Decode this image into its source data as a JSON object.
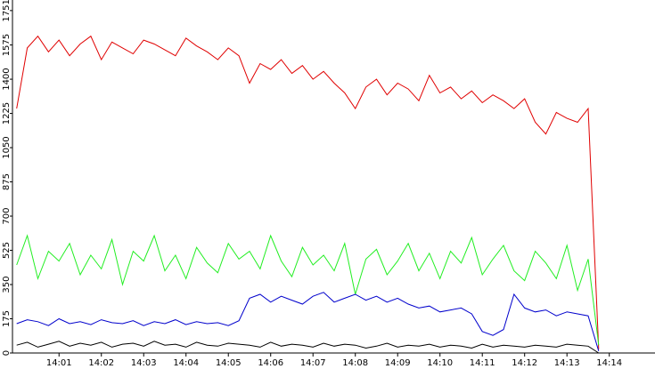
{
  "chart_data": {
    "type": "line",
    "x": [
      840,
      840.25,
      840.5,
      840.75,
      841,
      841.25,
      841.5,
      841.75,
      842,
      842.25,
      842.5,
      842.75,
      843,
      843.25,
      843.5,
      843.75,
      844,
      844.25,
      844.5,
      844.75,
      845,
      845.25,
      845.5,
      845.75,
      846,
      846.25,
      846.5,
      846.75,
      847,
      847.25,
      847.5,
      847.75,
      848,
      848.25,
      848.5,
      848.75,
      849,
      849.25,
      849.5,
      849.75,
      850,
      850.25,
      850.5,
      850.75,
      851,
      851.25,
      851.5,
      851.75,
      852,
      852.25,
      852.5,
      852.75,
      853,
      853.25,
      853.5,
      853.75
    ],
    "series": [
      {
        "color": "#e00000",
        "values": [
          1250,
          1560,
          1620,
          1540,
          1600,
          1520,
          1580,
          1620,
          1500,
          1590,
          1560,
          1530,
          1600,
          1580,
          1550,
          1520,
          1610,
          1570,
          1540,
          1500,
          1560,
          1520,
          1380,
          1480,
          1450,
          1500,
          1430,
          1470,
          1400,
          1440,
          1380,
          1330,
          1250,
          1360,
          1400,
          1320,
          1380,
          1350,
          1290,
          1420,
          1330,
          1360,
          1300,
          1340,
          1280,
          1320,
          1290,
          1250,
          1300,
          1180,
          1120,
          1230,
          1200,
          1180,
          1250,
          20
        ]
      },
      {
        "color": "#22ee22",
        "values": [
          450,
          600,
          380,
          520,
          470,
          560,
          400,
          500,
          430,
          580,
          350,
          520,
          470,
          600,
          420,
          500,
          380,
          540,
          460,
          410,
          560,
          480,
          520,
          430,
          600,
          470,
          390,
          540,
          450,
          500,
          420,
          560,
          300,
          480,
          530,
          400,
          470,
          560,
          420,
          510,
          380,
          520,
          460,
          590,
          400,
          480,
          550,
          420,
          370,
          520,
          460,
          380,
          550,
          320,
          480,
          40
        ]
      },
      {
        "color": "#0000cc",
        "values": [
          150,
          170,
          160,
          140,
          175,
          150,
          160,
          145,
          170,
          155,
          150,
          165,
          140,
          160,
          150,
          170,
          145,
          160,
          150,
          155,
          140,
          165,
          280,
          300,
          260,
          290,
          270,
          250,
          290,
          310,
          260,
          280,
          300,
          270,
          290,
          260,
          280,
          250,
          230,
          240,
          210,
          220,
          230,
          200,
          110,
          90,
          120,
          300,
          230,
          210,
          220,
          190,
          210,
          200,
          190,
          10
        ]
      },
      {
        "color": "#000000",
        "values": [
          40,
          55,
          30,
          45,
          60,
          35,
          50,
          40,
          55,
          30,
          45,
          50,
          35,
          60,
          40,
          45,
          30,
          55,
          40,
          35,
          50,
          45,
          40,
          30,
          55,
          35,
          45,
          40,
          30,
          50,
          35,
          45,
          40,
          25,
          35,
          50,
          30,
          40,
          35,
          45,
          30,
          40,
          35,
          25,
          45,
          30,
          40,
          35,
          30,
          40,
          35,
          30,
          45,
          40,
          35,
          0
        ]
      }
    ],
    "xlim": [
      839.9,
      855.08
    ],
    "xticks": [
      {
        "value": 841,
        "label": "14:01"
      },
      {
        "value": 842,
        "label": "14:02"
      },
      {
        "value": 843,
        "label": "14:03"
      },
      {
        "value": 844,
        "label": "14:04"
      },
      {
        "value": 845,
        "label": "14:05"
      },
      {
        "value": 846,
        "label": "14:06"
      },
      {
        "value": 847,
        "label": "14:07"
      },
      {
        "value": 848,
        "label": "14:08"
      },
      {
        "value": 849,
        "label": "14:09"
      },
      {
        "value": 850,
        "label": "14:10"
      },
      {
        "value": 851,
        "label": "14:11"
      },
      {
        "value": 852,
        "label": "14:12"
      },
      {
        "value": 853,
        "label": "14:13"
      },
      {
        "value": 854,
        "label": "14:14"
      }
    ],
    "ylim": [
      0,
      1805
    ],
    "yticks": [
      0,
      175,
      350,
      525,
      700,
      875,
      1050,
      1225,
      1400,
      1575,
      1751
    ]
  }
}
